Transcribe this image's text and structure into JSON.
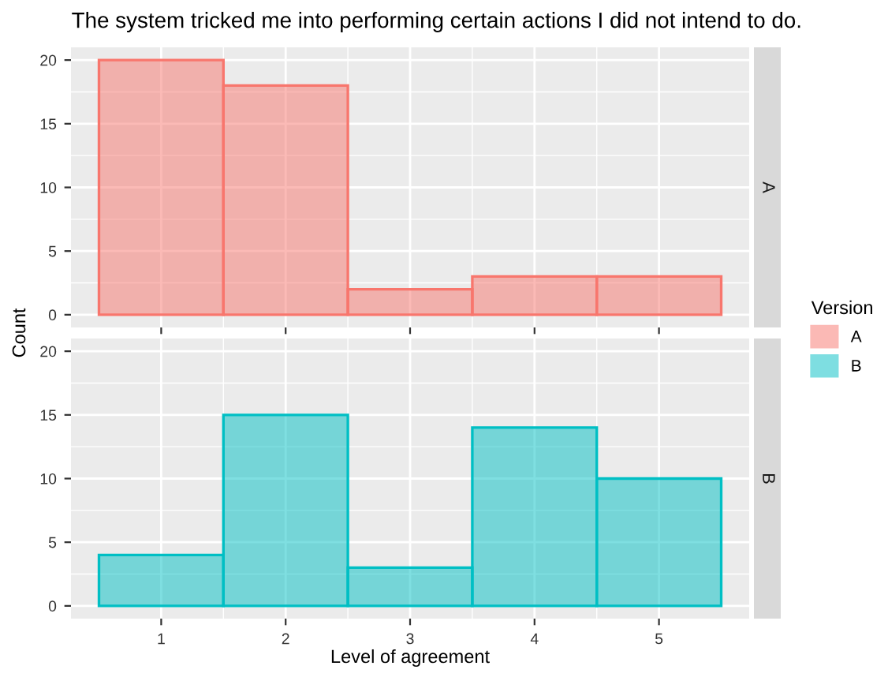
{
  "chart_data": [
    {
      "type": "histogram",
      "title": "The system tricked me into performing certain actions I did not intend to do.",
      "ylabel": "Count",
      "legend_title": "Version",
      "legend": "right",
      "bins": [
        0.5,
        1.5,
        2.5,
        3.5,
        4.5,
        5.5
      ],
      "series": [
        {
          "name": "A",
          "color": "#f8766d",
          "values": [
            20,
            18,
            2,
            3,
            3
          ]
        }
      ],
      "xlim": [
        0.275,
        5.725
      ],
      "ylim": [
        -1,
        21
      ],
      "yticks": [
        0,
        5,
        10,
        15,
        20
      ],
      "xticks": [
        1,
        2,
        3,
        4,
        5
      ],
      "tick_labels": "y",
      "grid": true
    },
    {
      "type": "histogram",
      "xlabel": "Level of agreement",
      "bins": [
        0.5,
        1.5,
        2.5,
        3.5,
        4.5,
        5.5
      ],
      "series": [
        {
          "name": "B",
          "color": "#00bfc4",
          "values": [
            4,
            15,
            3,
            14,
            10
          ]
        }
      ],
      "xlim": [
        0.275,
        5.725
      ],
      "ylim": [
        -1,
        21
      ],
      "yticks": [
        0,
        5,
        10,
        15,
        20
      ],
      "xticks": [
        1,
        2,
        3,
        4,
        5
      ],
      "grid": true
    }
  ]
}
